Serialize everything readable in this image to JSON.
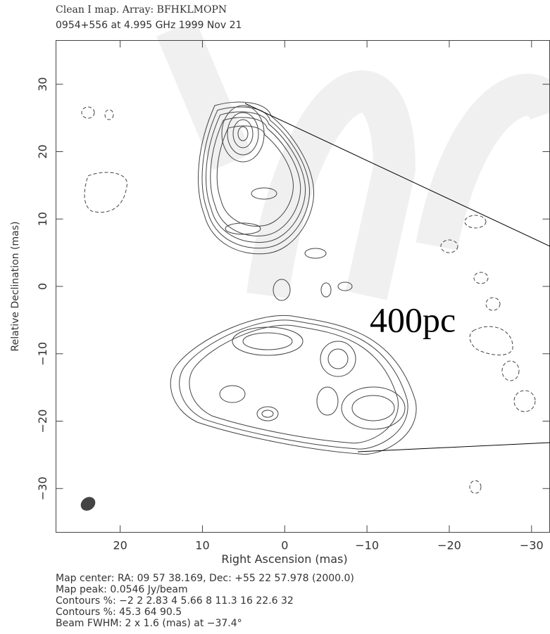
{
  "chart_data": {
    "type": "contour",
    "title": "Clean I map.  Array:  BFHKLMOPN",
    "subtitle": "0954+556 at 4.995 GHz 1999 Nov 21",
    "xlabel": "Right Ascension  (mas)",
    "ylabel": "Relative Declination  (mas)",
    "annotation": "400pc",
    "xlim": [
      27.8,
      -32.2
    ],
    "ylim": [
      -36.5,
      36.5
    ],
    "xticks": [
      20,
      10,
      0,
      {
        "value": -10,
        "label": "−10"
      },
      {
        "value": -20,
        "label": "−20"
      },
      {
        "value": -30,
        "label": "−30"
      }
    ],
    "yticks": [
      {
        "value": -30,
        "label": "−30"
      },
      {
        "value": -20,
        "label": "−20"
      },
      {
        "value": -10,
        "label": "−10"
      },
      0,
      10,
      20,
      30
    ],
    "notes": [
      "Map center:  RA: 09 57 38.169,  Dec: +55 22 57.978 (2000.0)",
      "Map peak: 0.0546 Jy/beam",
      "Contours %: −2 2 2.83 4 5.66 8 11.3 16 22.6 32",
      "Contours %: 45.3 64 90.5",
      "Beam FWHM: 2 x 1.6 (mas) at −37.4°"
    ]
  }
}
